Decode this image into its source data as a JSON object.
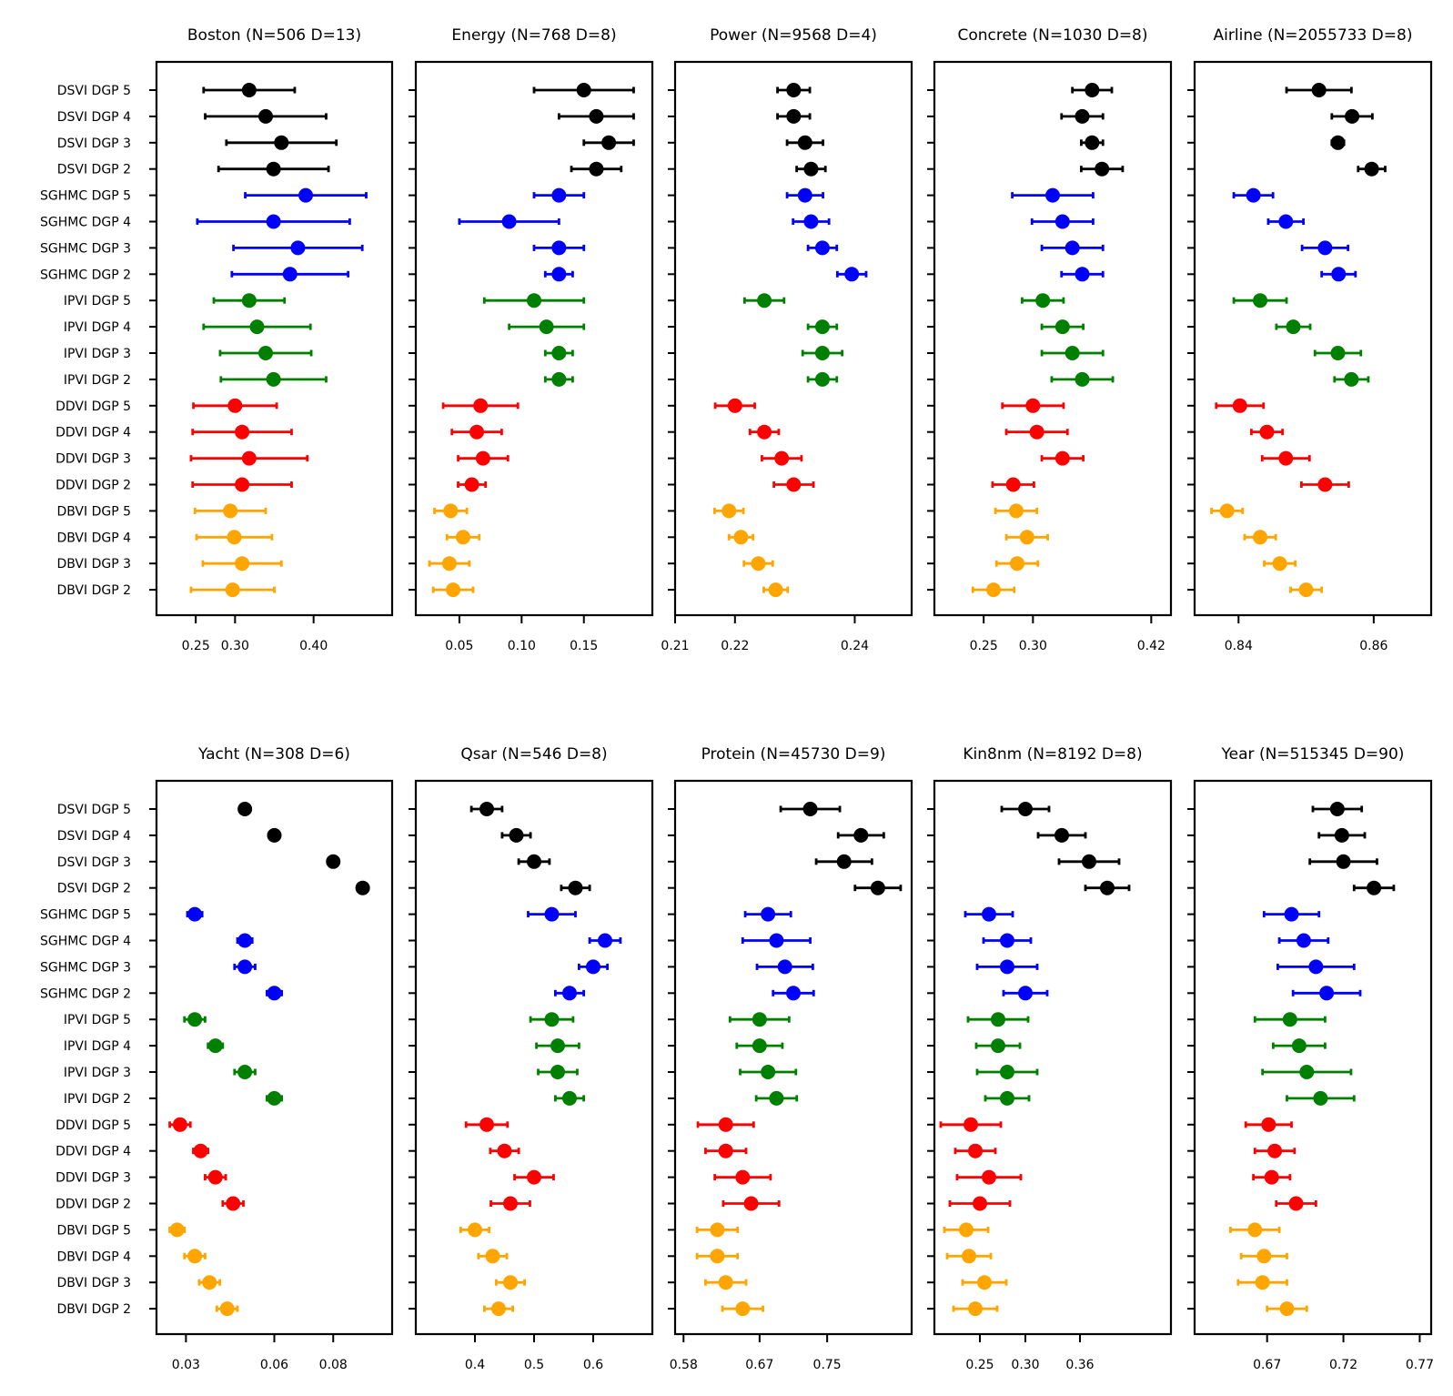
{
  "figure": {
    "type": "forest",
    "methods": [
      "DSVI DGP 5",
      "DSVI DGP 4",
      "DSVI DGP 3",
      "DSVI DGP 2",
      "SGHMC DGP 5",
      "SGHMC DGP 4",
      "SGHMC DGP 3",
      "SGHMC DGP 2",
      "IPVI DGP 5",
      "IPVI DGP 4",
      "IPVI DGP 3",
      "IPVI DGP 2",
      "DDVI DGP 5",
      "DDVI DGP 4",
      "DDVI DGP 3",
      "DDVI DGP 2",
      "DBVI DGP 5",
      "DBVI DGP 4",
      "DBVI DGP 3",
      "DBVI DGP 2"
    ],
    "group_colors": [
      "#000000",
      "#0000ff",
      "#008000",
      "#ff0000",
      "#ffa500"
    ]
  },
  "chart_data": [
    {
      "type": "scatter",
      "title": "Boston (N=506 D=13)",
      "xlim": [
        0.2,
        0.5
      ],
      "xticks": [
        0.25,
        0.3,
        0.4
      ],
      "tick_labels": [
        "0.25",
        "0.30",
        "0.40"
      ],
      "values": [
        0.318,
        0.339,
        0.359,
        0.349,
        0.39,
        0.349,
        0.38,
        0.37,
        0.318,
        0.328,
        0.339,
        0.349,
        0.3,
        0.309,
        0.318,
        0.309,
        0.294,
        0.299,
        0.309,
        0.297
      ],
      "errors": [
        0.058,
        0.077,
        0.07,
        0.07,
        0.077,
        0.097,
        0.082,
        0.074,
        0.045,
        0.068,
        0.058,
        0.067,
        0.053,
        0.063,
        0.074,
        0.063,
        0.045,
        0.048,
        0.05,
        0.053
      ]
    },
    {
      "type": "scatter",
      "title": "Energy  (N=768  D=8)",
      "xlim": [
        0.015,
        0.205
      ],
      "xticks": [
        0.05,
        0.1,
        0.15
      ],
      "tick_labels": [
        "0.05",
        "0.10",
        "0.15"
      ],
      "values": [
        0.15,
        0.16,
        0.17,
        0.16,
        0.13,
        0.09,
        0.13,
        0.13,
        0.11,
        0.12,
        0.13,
        0.13,
        0.067,
        0.064,
        0.069,
        0.06,
        0.043,
        0.053,
        0.042,
        0.045
      ],
      "errors": [
        0.04,
        0.03,
        0.02,
        0.02,
        0.02,
        0.04,
        0.02,
        0.011,
        0.04,
        0.03,
        0.011,
        0.011,
        0.03,
        0.02,
        0.02,
        0.011,
        0.013,
        0.013,
        0.016,
        0.016
      ]
    },
    {
      "type": "scatter",
      "title": "Power  (N=9568  D=4)",
      "xlim": [
        0.21,
        0.2495
      ],
      "xticks": [
        0.21,
        0.22,
        0.24
      ],
      "tick_labels": [
        "0.21",
        "0.22",
        "0.24"
      ],
      "values": [
        0.2298,
        0.2298,
        0.2317,
        0.2327,
        0.2317,
        0.2327,
        0.2346,
        0.2395,
        0.2249,
        0.2346,
        0.2346,
        0.2346,
        0.22,
        0.2249,
        0.2278,
        0.2298,
        0.219,
        0.221,
        0.2239,
        0.2268
      ],
      "errors": [
        0.0027,
        0.0027,
        0.003,
        0.0024,
        0.003,
        0.003,
        0.0024,
        0.0024,
        0.0033,
        0.0024,
        0.0033,
        0.0024,
        0.0033,
        0.0024,
        0.0033,
        0.0033,
        0.0024,
        0.002,
        0.0024,
        0.002
      ]
    },
    {
      "type": "scatter",
      "title": "Concrete  (N=1030  D=8)",
      "xlim": [
        0.2,
        0.44
      ],
      "xticks": [
        0.25,
        0.3,
        0.42
      ],
      "tick_labels": [
        "0.25",
        "0.30",
        "0.42"
      ],
      "values": [
        0.36,
        0.35,
        0.36,
        0.37,
        0.32,
        0.33,
        0.34,
        0.35,
        0.31,
        0.33,
        0.34,
        0.35,
        0.3,
        0.304,
        0.33,
        0.28,
        0.283,
        0.294,
        0.284,
        0.26
      ],
      "errors": [
        0.02,
        0.021,
        0.011,
        0.021,
        0.041,
        0.031,
        0.031,
        0.021,
        0.021,
        0.021,
        0.031,
        0.031,
        0.031,
        0.031,
        0.021,
        0.021,
        0.021,
        0.021,
        0.021,
        0.021
      ]
    },
    {
      "type": "scatter",
      "title": "Airline  (N=2055733  D=8)",
      "xlim": [
        0.8335,
        0.8685
      ],
      "xticks": [
        0.84,
        0.86
      ],
      "tick_labels": [
        "0.84",
        "0.86"
      ],
      "values": [
        0.8519,
        0.8568,
        0.8547,
        0.8597,
        0.8422,
        0.847,
        0.8528,
        0.8548,
        0.8432,
        0.8481,
        0.8547,
        0.8567,
        0.8402,
        0.8442,
        0.847,
        0.8528,
        0.8383,
        0.8432,
        0.8461,
        0.85
      ],
      "errors": [
        0.0048,
        0.003,
        0.0009,
        0.002,
        0.0029,
        0.0026,
        0.0034,
        0.0025,
        0.0039,
        0.0025,
        0.0034,
        0.0025,
        0.0035,
        0.0023,
        0.0035,
        0.0035,
        0.0023,
        0.0023,
        0.0023,
        0.0023
      ]
    },
    {
      "type": "scatter",
      "title": "Yacht  (N=308  D=6)",
      "xlim": [
        0.02,
        0.1
      ],
      "xticks": [
        0.03,
        0.06,
        0.08
      ],
      "tick_labels": [
        "0.03",
        "0.06",
        "0.08"
      ],
      "values": [
        0.05,
        0.06,
        0.08,
        0.09,
        0.033,
        0.05,
        0.05,
        0.06,
        0.033,
        0.04,
        0.05,
        0.06,
        0.028,
        0.035,
        0.04,
        0.046,
        0.027,
        0.033,
        0.038,
        0.044
      ],
      "errors": [
        0,
        0,
        0,
        0,
        0.0025,
        0.0025,
        0.0035,
        0.0025,
        0.0035,
        0.0025,
        0.0035,
        0.0025,
        0.0035,
        0.0025,
        0.0035,
        0.0035,
        0.0025,
        0.0035,
        0.0035,
        0.0035
      ]
    },
    {
      "type": "scatter",
      "title": "Qsar  (N=546  D=8)",
      "xlim": [
        0.3,
        0.7
      ],
      "xticks": [
        0.4,
        0.5,
        0.6
      ],
      "tick_labels": [
        "0.4",
        "0.5",
        "0.6"
      ],
      "values": [
        0.42,
        0.47,
        0.5,
        0.57,
        0.53,
        0.62,
        0.6,
        0.56,
        0.53,
        0.54,
        0.54,
        0.56,
        0.42,
        0.45,
        0.5,
        0.46,
        0.4,
        0.43,
        0.46,
        0.44
      ],
      "errors": [
        0.026,
        0.024,
        0.026,
        0.024,
        0.04,
        0.026,
        0.024,
        0.024,
        0.036,
        0.036,
        0.033,
        0.024,
        0.035,
        0.024,
        0.033,
        0.033,
        0.024,
        0.024,
        0.024,
        0.024
      ]
    },
    {
      "type": "scatter",
      "title": "Protein  (N=45730  D=9)",
      "xlim": [
        0.57,
        0.85
      ],
      "xticks": [
        0.58,
        0.67,
        0.75
      ],
      "tick_labels": [
        "0.58",
        "0.67",
        "0.75"
      ],
      "values": [
        0.73,
        0.79,
        0.77,
        0.81,
        0.68,
        0.69,
        0.7,
        0.71,
        0.67,
        0.67,
        0.68,
        0.69,
        0.63,
        0.63,
        0.65,
        0.66,
        0.62,
        0.62,
        0.63,
        0.65
      ],
      "errors": [
        0.035,
        0.027,
        0.033,
        0.027,
        0.027,
        0.04,
        0.033,
        0.024,
        0.035,
        0.027,
        0.033,
        0.024,
        0.033,
        0.024,
        0.033,
        0.033,
        0.024,
        0.024,
        0.024,
        0.024
      ]
    },
    {
      "type": "scatter",
      "title": "Kin8nm  (N=8192  D=8)",
      "xlim": [
        0.2,
        0.46
      ],
      "xticks": [
        0.25,
        0.3,
        0.36
      ],
      "tick_labels": [
        "0.25",
        "0.30",
        "0.36"
      ],
      "values": [
        0.3,
        0.34,
        0.37,
        0.39,
        0.26,
        0.28,
        0.28,
        0.3,
        0.27,
        0.27,
        0.28,
        0.28,
        0.24,
        0.245,
        0.26,
        0.25,
        0.235,
        0.238,
        0.255,
        0.245
      ],
      "errors": [
        0.026,
        0.026,
        0.033,
        0.024,
        0.026,
        0.026,
        0.033,
        0.024,
        0.033,
        0.024,
        0.033,
        0.024,
        0.033,
        0.022,
        0.035,
        0.033,
        0.024,
        0.024,
        0.024,
        0.024
      ]
    },
    {
      "type": "scatter",
      "title": "Year (N=515345  D=90)",
      "xlim": [
        0.6225,
        0.7775
      ],
      "xticks": [
        0.67,
        0.72,
        0.77
      ],
      "tick_labels": [
        "0.67",
        "0.72",
        "0.77"
      ],
      "values": [
        0.716,
        0.719,
        0.72,
        0.74,
        0.686,
        0.694,
        0.702,
        0.709,
        0.685,
        0.691,
        0.696,
        0.705,
        0.671,
        0.675,
        0.673,
        0.689,
        0.662,
        0.668,
        0.667,
        0.683
      ],
      "errors": [
        0.016,
        0.015,
        0.022,
        0.013,
        0.018,
        0.016,
        0.025,
        0.022,
        0.023,
        0.017,
        0.029,
        0.022,
        0.015,
        0.013,
        0.012,
        0.013,
        0.016,
        0.015,
        0.016,
        0.013
      ]
    }
  ]
}
